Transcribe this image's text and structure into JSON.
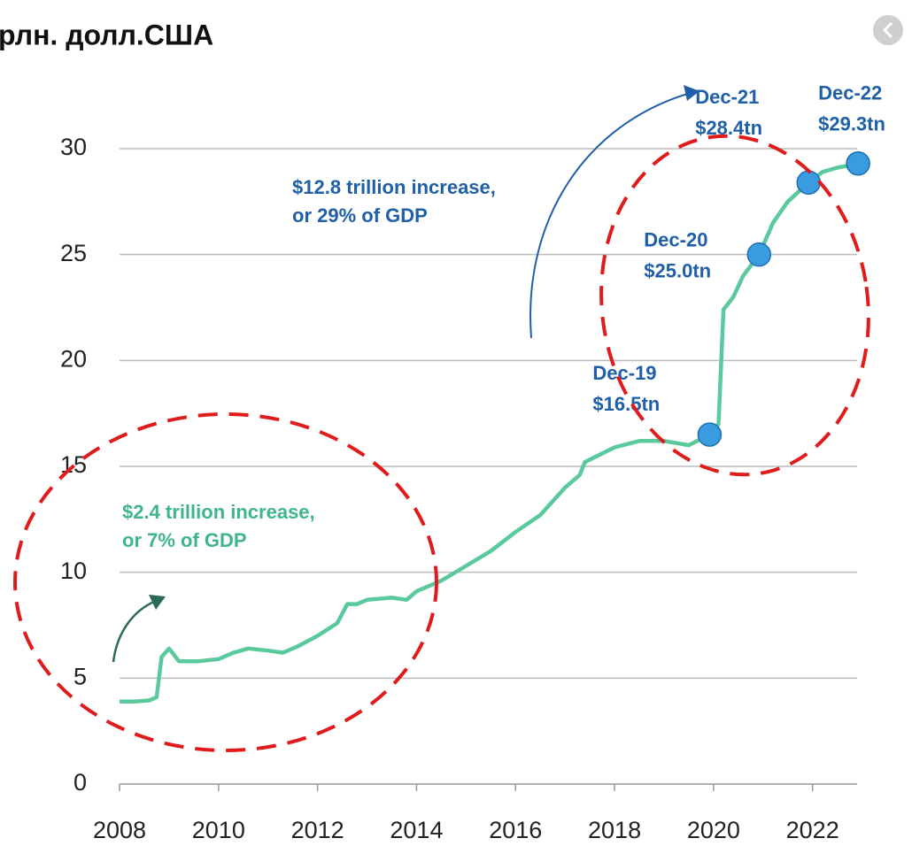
{
  "chart_data": {
    "type": "line",
    "title": "рлн. долл.США",
    "series": [
      {
        "color": "#5ac99c",
        "x": [
          2008.0,
          2008.3,
          2008.6,
          2008.75,
          2008.85,
          2009.0,
          2009.2,
          2009.6,
          2010.0,
          2010.3,
          2010.6,
          2011.0,
          2011.3,
          2011.6,
          2012.0,
          2012.4,
          2012.6,
          2012.8,
          2013.0,
          2013.5,
          2013.8,
          2014.0,
          2014.5,
          2015.0,
          2015.5,
          2016.0,
          2016.5,
          2017.0,
          2017.3,
          2017.4,
          2018.0,
          2018.5,
          2019.0,
          2019.5,
          2019.92,
          2020.1,
          2020.2,
          2020.4,
          2020.6,
          2020.92,
          2021.2,
          2021.5,
          2021.92,
          2022.2,
          2022.5,
          2022.92
        ],
        "values": [
          3.9,
          3.9,
          3.95,
          4.1,
          6.0,
          6.4,
          5.8,
          5.8,
          5.9,
          6.2,
          6.4,
          6.3,
          6.2,
          6.5,
          7.0,
          7.6,
          8.5,
          8.5,
          8.7,
          8.8,
          8.7,
          9.1,
          9.6,
          10.3,
          11.0,
          11.9,
          12.7,
          14.0,
          14.6,
          15.2,
          15.9,
          16.2,
          16.2,
          16.0,
          16.5,
          17.0,
          22.4,
          23.0,
          24.0,
          25.0,
          26.5,
          27.5,
          28.4,
          28.9,
          29.1,
          29.3
        ]
      }
    ],
    "points": [
      {
        "x": 2019.92,
        "value": 16.5,
        "date": "Dec-19",
        "value_label": "$16.5tn"
      },
      {
        "x": 2020.92,
        "value": 25.0,
        "date": "Dec-20",
        "value_label": "$25.0tn"
      },
      {
        "x": 2021.92,
        "value": 28.4,
        "date": "Dec-21",
        "value_label": "$28.4tn"
      },
      {
        "x": 2022.92,
        "value": 29.3,
        "date": "Dec-22",
        "value_label": "$29.3tn"
      }
    ],
    "annotations": [
      {
        "lines": [
          "$12.8 trillion increase,",
          "or 29% of GDP"
        ],
        "color": "#1f5fa8"
      },
      {
        "lines": [
          "$2.4 trillion increase,",
          "or 7% of GDP"
        ],
        "color": "#3fb68a"
      }
    ],
    "xlim": [
      2008,
      2022.9
    ],
    "xticks": [
      2008,
      2010,
      2012,
      2014,
      2016,
      2018,
      2020,
      2022
    ],
    "ylim": [
      0,
      30
    ],
    "yticks": [
      0,
      5,
      10,
      15,
      20,
      25,
      30
    ],
    "grid": true
  }
}
